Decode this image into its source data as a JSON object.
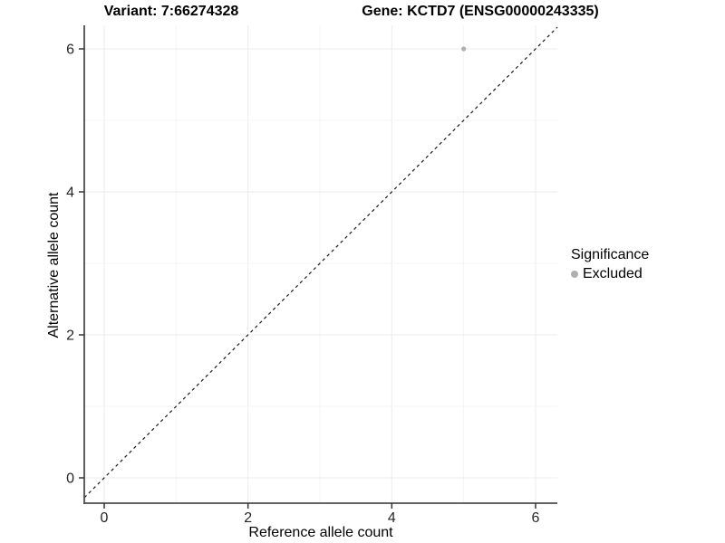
{
  "chart_data": {
    "type": "scatter",
    "title_variant": "Variant: 7:66274328",
    "title_gene": "Gene: KCTD7 (ENSG00000243335)",
    "xlabel": "Reference allele count",
    "ylabel": "Alternative allele count",
    "xlim": [
      0,
      6
    ],
    "ylim": [
      0,
      6
    ],
    "xticks": [
      0,
      2,
      4,
      6
    ],
    "yticks": [
      0,
      2,
      4,
      6
    ],
    "grid": {
      "interval": 1,
      "major_every": 2,
      "major_color": "#ebebeb",
      "minor_color": "#f4f4f4"
    },
    "series": [
      {
        "name": "Excluded",
        "color": "#b0b0b0",
        "points": [
          {
            "x": 5,
            "y": 6
          }
        ]
      }
    ],
    "reference_line": {
      "type": "abline",
      "slope": 1,
      "intercept": 0,
      "style": "dashed",
      "color": "#1a1a1a"
    },
    "legend": {
      "title": "Significance",
      "position": "right",
      "items": [
        {
          "label": "Excluded",
          "color": "#b0b0b0"
        }
      ]
    },
    "colors": {
      "axis_line": "#4d4d4d",
      "tick_mark": "#333333",
      "tick_label": "#262626",
      "background": "#ffffff"
    }
  }
}
